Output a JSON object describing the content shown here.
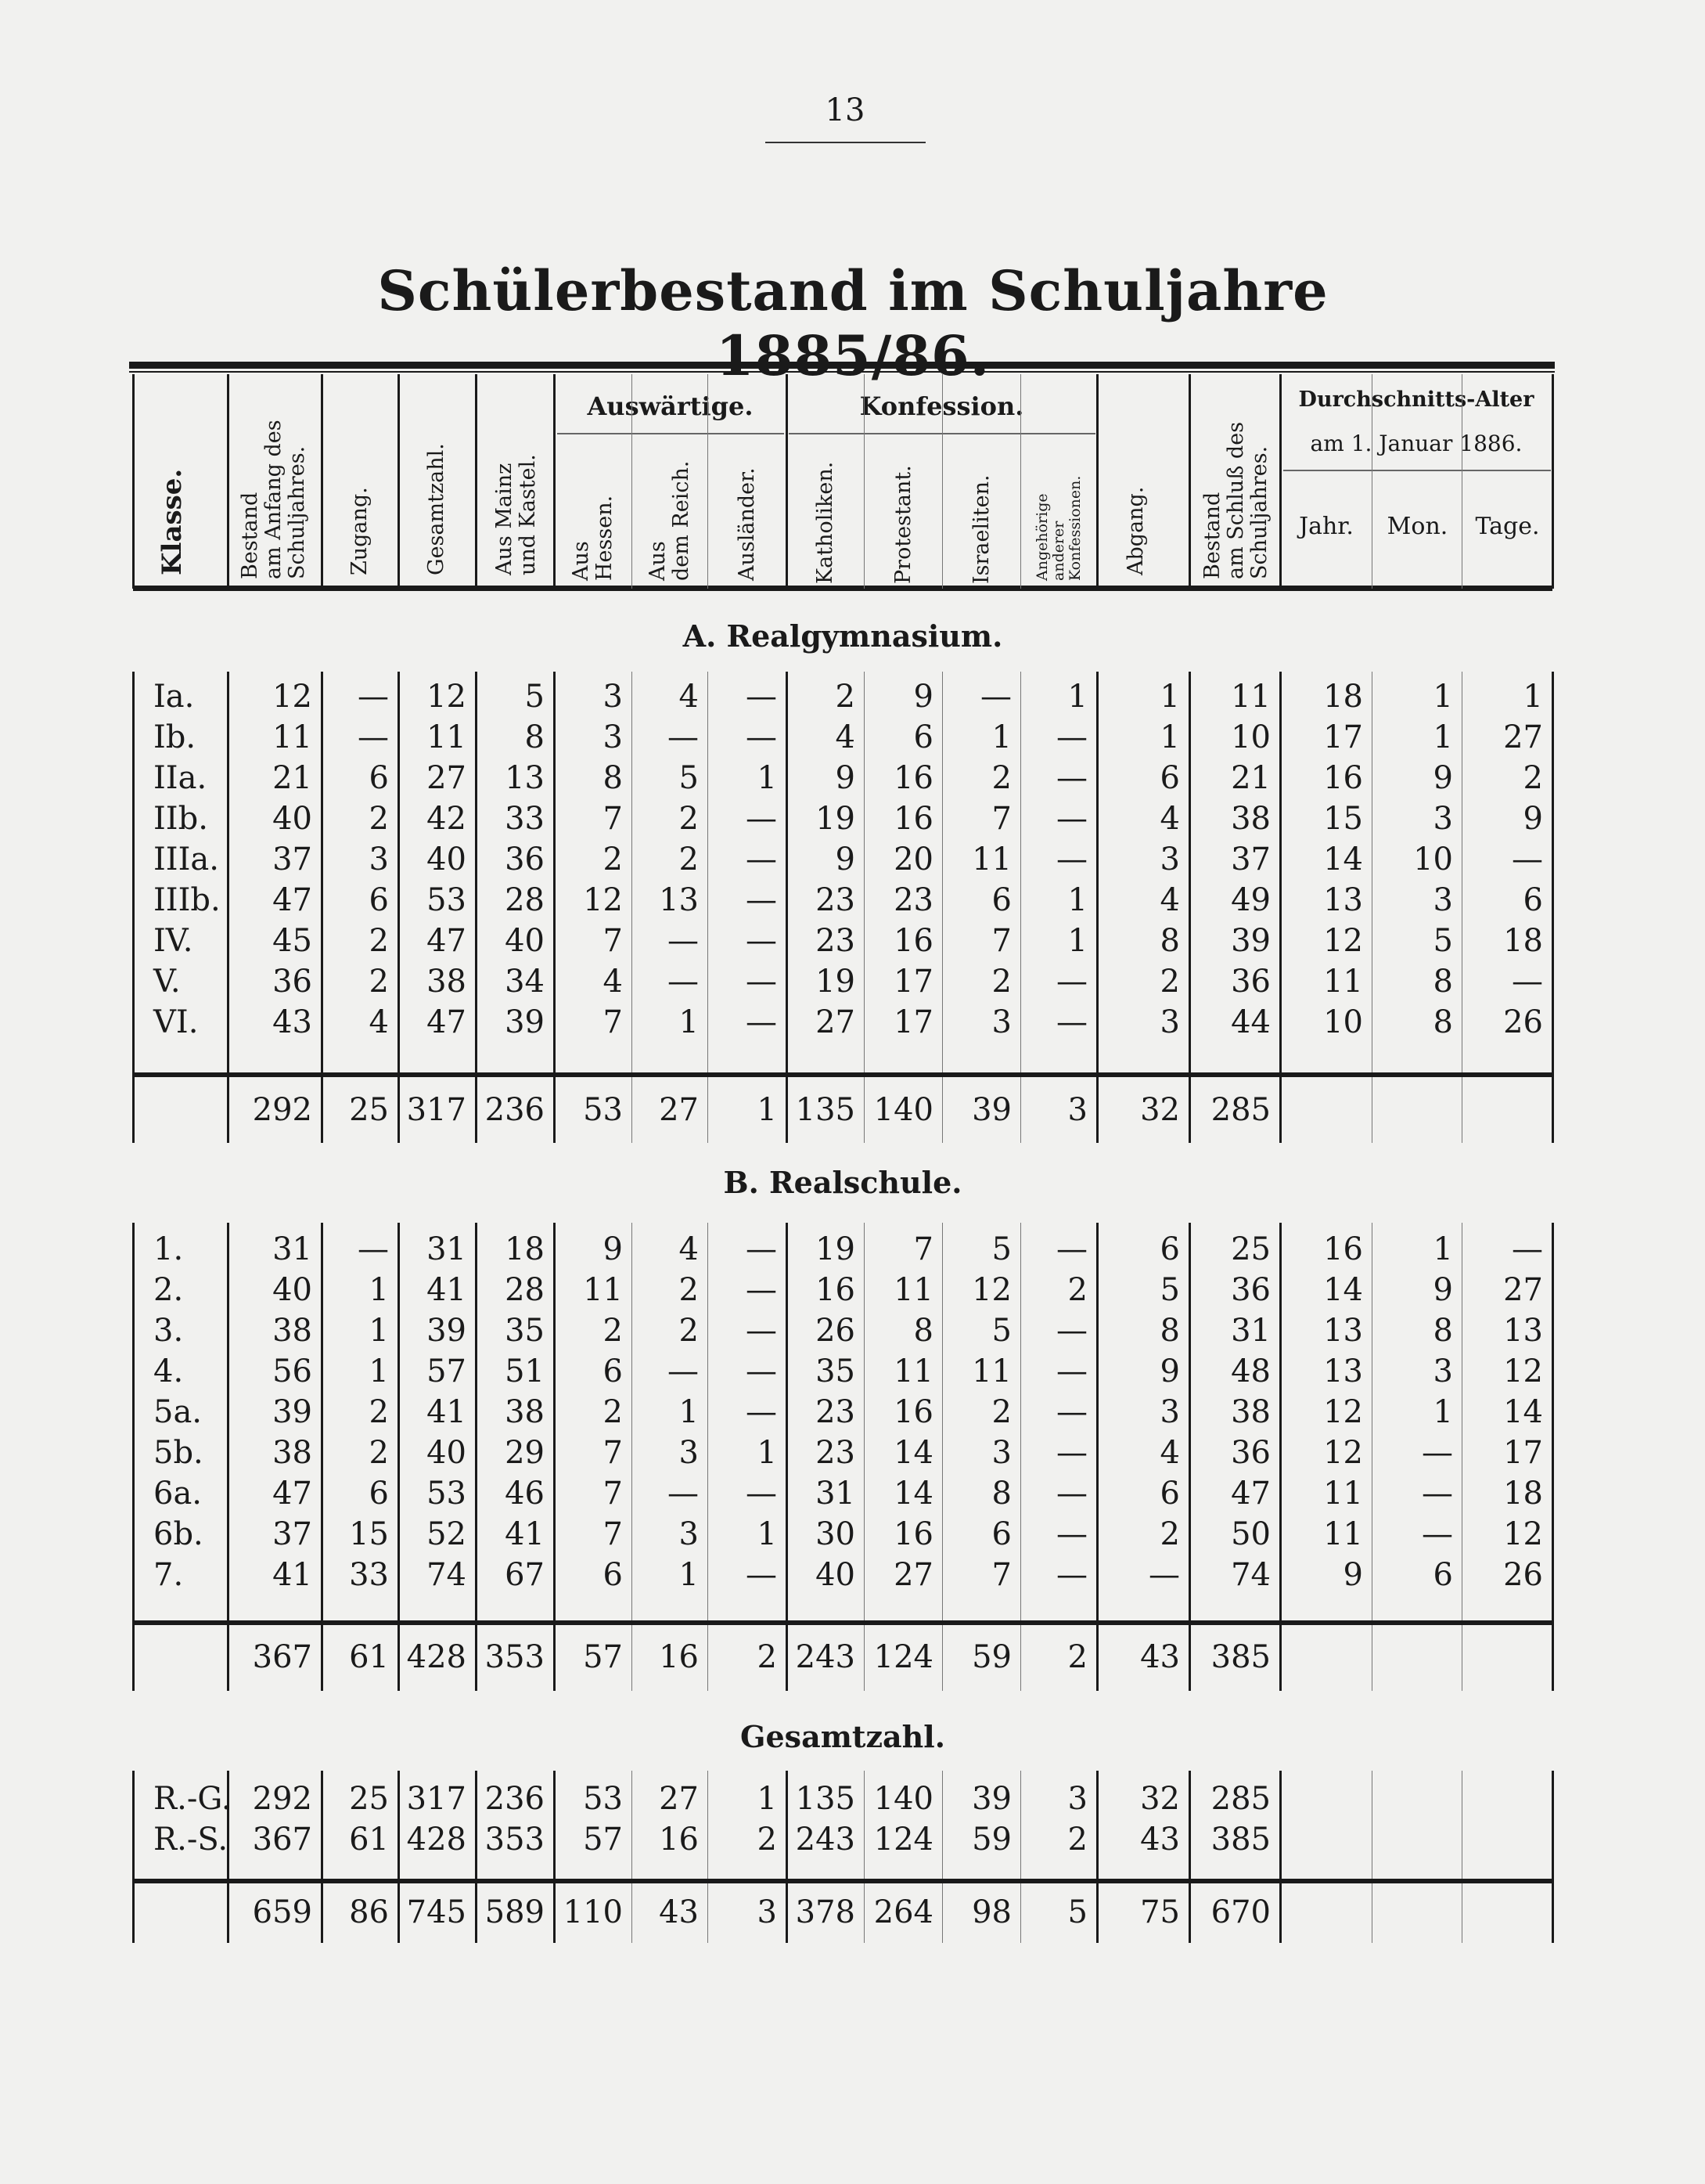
{
  "page_number": "13",
  "title": "Schülerbestand im Schuljahre 1885/86.",
  "headers": {
    "klasse": "Klasse.",
    "bestand_anfang": "Bestand\nam Anfang des\nSchuljahres.",
    "zugang": "Zugang.",
    "gesamtzahl": "Gesamtzahl.",
    "mainz": "Aus Mainz\nund Kastel.",
    "auswaertige": "Auswärtige.",
    "hessen": "Aus\nHessen.",
    "reich": "Aus\ndem Reich.",
    "auslaender": "Ausländer.",
    "konfession": "Konfession.",
    "katholiken": "Katholiken.",
    "protestant": "Protestant.",
    "israeliten": "Israeliten.",
    "andere": "Angehörige\nanderer\nKonfessionen.",
    "abgang": "Abgang.",
    "bestand_schluss": "Bestand\nam Schluß des\nSchuljahres.",
    "alter": "Durchschnitts-Alter",
    "alter_date": "am 1. Januar 1886.",
    "jahr": "Jahr.",
    "mon": "Mon.",
    "tage": "Tage."
  },
  "sections": [
    {
      "title": "A. Realgymnasium.",
      "rows": [
        [
          "Ia.",
          "12",
          "—",
          "12",
          "5",
          "3",
          "4",
          "—",
          "2",
          "9",
          "—",
          "1",
          "1",
          "11",
          "18",
          "1",
          "1"
        ],
        [
          "Ib.",
          "11",
          "—",
          "11",
          "8",
          "3",
          "—",
          "—",
          "4",
          "6",
          "1",
          "—",
          "1",
          "10",
          "17",
          "1",
          "27"
        ],
        [
          "IIa.",
          "21",
          "6",
          "27",
          "13",
          "8",
          "5",
          "1",
          "9",
          "16",
          "2",
          "—",
          "6",
          "21",
          "16",
          "9",
          "2"
        ],
        [
          "IIb.",
          "40",
          "2",
          "42",
          "33",
          "7",
          "2",
          "—",
          "19",
          "16",
          "7",
          "—",
          "4",
          "38",
          "15",
          "3",
          "9"
        ],
        [
          "IIIa.",
          "37",
          "3",
          "40",
          "36",
          "2",
          "2",
          "—",
          "9",
          "20",
          "11",
          "—",
          "3",
          "37",
          "14",
          "10",
          "—"
        ],
        [
          "IIIb.",
          "47",
          "6",
          "53",
          "28",
          "12",
          "13",
          "—",
          "23",
          "23",
          "6",
          "1",
          "4",
          "49",
          "13",
          "3",
          "6"
        ],
        [
          "IV.",
          "45",
          "2",
          "47",
          "40",
          "7",
          "—",
          "—",
          "23",
          "16",
          "7",
          "1",
          "8",
          "39",
          "12",
          "5",
          "18"
        ],
        [
          "V.",
          "36",
          "2",
          "38",
          "34",
          "4",
          "—",
          "—",
          "19",
          "17",
          "2",
          "—",
          "2",
          "36",
          "11",
          "8",
          "—"
        ],
        [
          "VI.",
          "43",
          "4",
          "47",
          "39",
          "7",
          "1",
          "—",
          "27",
          "17",
          "3",
          "—",
          "3",
          "44",
          "10",
          "8",
          "26"
        ]
      ],
      "total": [
        "",
        "292",
        "25",
        "317",
        "236",
        "53",
        "27",
        "1",
        "135",
        "140",
        "39",
        "3",
        "32",
        "285",
        "",
        "",
        ""
      ]
    },
    {
      "title": "B. Realschule.",
      "rows": [
        [
          "1.",
          "31",
          "—",
          "31",
          "18",
          "9",
          "4",
          "—",
          "19",
          "7",
          "5",
          "—",
          "6",
          "25",
          "16",
          "1",
          "—"
        ],
        [
          "2.",
          "40",
          "1",
          "41",
          "28",
          "11",
          "2",
          "—",
          "16",
          "11",
          "12",
          "2",
          "5",
          "36",
          "14",
          "9",
          "27"
        ],
        [
          "3.",
          "38",
          "1",
          "39",
          "35",
          "2",
          "2",
          "—",
          "26",
          "8",
          "5",
          "—",
          "8",
          "31",
          "13",
          "8",
          "13"
        ],
        [
          "4.",
          "56",
          "1",
          "57",
          "51",
          "6",
          "—",
          "—",
          "35",
          "11",
          "11",
          "—",
          "9",
          "48",
          "13",
          "3",
          "12"
        ],
        [
          "5a.",
          "39",
          "2",
          "41",
          "38",
          "2",
          "1",
          "—",
          "23",
          "16",
          "2",
          "—",
          "3",
          "38",
          "12",
          "1",
          "14"
        ],
        [
          "5b.",
          "38",
          "2",
          "40",
          "29",
          "7",
          "3",
          "1",
          "23",
          "14",
          "3",
          "—",
          "4",
          "36",
          "12",
          "—",
          "17"
        ],
        [
          "6a.",
          "47",
          "6",
          "53",
          "46",
          "7",
          "—",
          "—",
          "31",
          "14",
          "8",
          "—",
          "6",
          "47",
          "11",
          "—",
          "18"
        ],
        [
          "6b.",
          "37",
          "15",
          "52",
          "41",
          "7",
          "3",
          "1",
          "30",
          "16",
          "6",
          "—",
          "2",
          "50",
          "11",
          "—",
          "12"
        ],
        [
          "7.",
          "41",
          "33",
          "74",
          "67",
          "6",
          "1",
          "—",
          "40",
          "27",
          "7",
          "—",
          "—",
          "74",
          "9",
          "6",
          "26"
        ]
      ],
      "total": [
        "",
        "367",
        "61",
        "428",
        "353",
        "57",
        "16",
        "2",
        "243",
        "124",
        "59",
        "2",
        "43",
        "385",
        "",
        "",
        ""
      ]
    },
    {
      "title": "Gesamtzahl.",
      "rows": [
        [
          "R.-G.",
          "292",
          "25",
          "317",
          "236",
          "53",
          "27",
          "1",
          "135",
          "140",
          "39",
          "3",
          "32",
          "285",
          "",
          "",
          ""
        ],
        [
          "R.-S.",
          "367",
          "61",
          "428",
          "353",
          "57",
          "16",
          "2",
          "243",
          "124",
          "59",
          "2",
          "43",
          "385",
          "",
          "",
          ""
        ]
      ],
      "total": [
        "",
        "659",
        "86",
        "745",
        "589",
        "110",
        "43",
        "3",
        "378",
        "264",
        "98",
        "5",
        "75",
        "670",
        "",
        "",
        ""
      ]
    }
  ]
}
